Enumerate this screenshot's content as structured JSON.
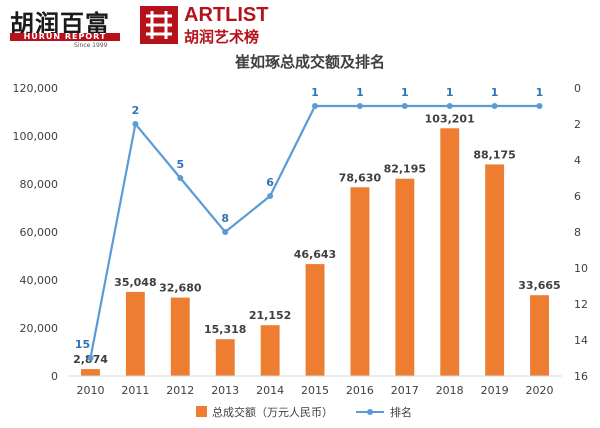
{
  "branding": {
    "hurun_cn": "胡润百富",
    "hurun_en": "HURUN REPORT",
    "hurun_since": "Since 1999",
    "artlist_en": "ARTLIST",
    "artlist_cn": "胡润艺术榜",
    "logo_color": "#b5121b"
  },
  "chart_data": {
    "type": "bar",
    "title": "崔如琢总成交额及排名",
    "categories": [
      "2010",
      "2011",
      "2012",
      "2013",
      "2014",
      "2015",
      "2016",
      "2017",
      "2018",
      "2019",
      "2020"
    ],
    "series": [
      {
        "name": "总成交额（万元人民币）",
        "type": "bar",
        "axis": "left",
        "color": "#ed7d31",
        "values": [
          2874,
          35048,
          32680,
          15318,
          21152,
          46643,
          78630,
          82195,
          103201,
          88175,
          33665
        ],
        "labels": [
          "2,874",
          "35,048",
          "32,680",
          "15,318",
          "21,152",
          "46,643",
          "78,630",
          "82,195",
          "103,201",
          "88,175",
          "33,665"
        ]
      },
      {
        "name": "排名",
        "type": "line",
        "axis": "right",
        "color": "#5b9bd5",
        "values": [
          15,
          2,
          5,
          8,
          6,
          1,
          1,
          1,
          1,
          1,
          1
        ],
        "labels": [
          "15",
          "2",
          "5",
          "8",
          "6",
          "1",
          "1",
          "1",
          "1",
          "1",
          "1"
        ]
      }
    ],
    "y_left": {
      "ylim": [
        0,
        120000
      ],
      "ticks": [
        0,
        20000,
        40000,
        60000,
        80000,
        100000,
        120000
      ],
      "tick_labels": [
        "0",
        "20,000",
        "40,000",
        "60,000",
        "80,000",
        "100,000",
        "120,000"
      ]
    },
    "y_right": {
      "ylim": [
        0,
        16
      ],
      "reversed": true,
      "ticks": [
        0,
        2,
        4,
        6,
        8,
        10,
        12,
        14,
        16
      ],
      "tick_labels": [
        "0",
        "2",
        "4",
        "6",
        "8",
        "10",
        "12",
        "14",
        "16"
      ]
    },
    "grid": false,
    "legend_position": "bottom",
    "colors": {
      "bar_label": "#404040",
      "line_label": "#2e75b6",
      "axis_text": "#404040",
      "axis_line": "#d9d9d9"
    }
  }
}
